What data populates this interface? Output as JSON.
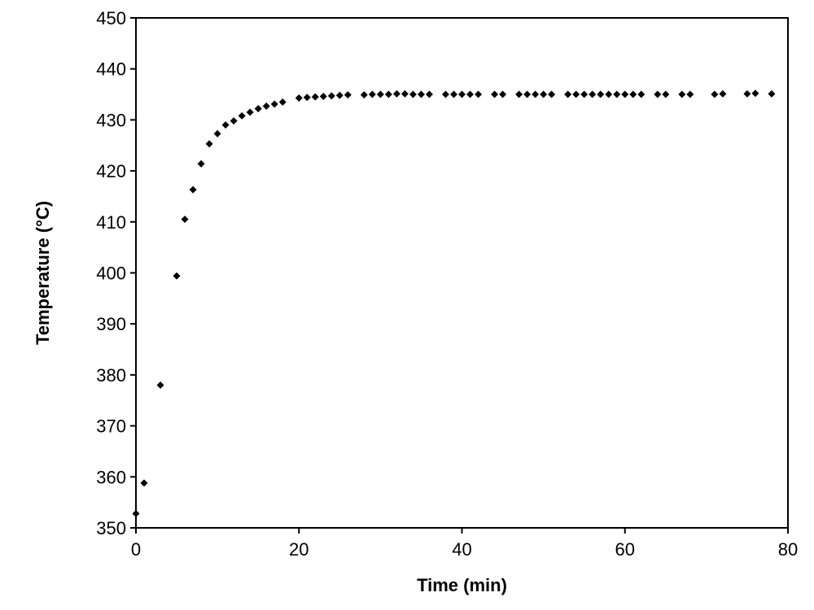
{
  "chart_data": {
    "type": "scatter",
    "title": "",
    "xlabel": "Time (min)",
    "ylabel": "Temperature (°C)",
    "xlim": [
      0,
      80
    ],
    "ylim": [
      350,
      450
    ],
    "xticks": [
      0,
      20,
      40,
      60,
      80
    ],
    "yticks": [
      350,
      360,
      370,
      380,
      390,
      400,
      410,
      420,
      430,
      440,
      450
    ],
    "grid": false,
    "legend": "none",
    "marker": "diamond",
    "marker_color": "#000000",
    "series": [
      {
        "x": [
          0,
          1,
          3,
          5,
          6,
          7,
          8,
          9,
          10,
          11,
          12,
          13,
          14,
          15,
          16,
          17,
          18,
          20,
          21,
          22,
          23,
          24,
          25,
          26,
          28,
          29,
          30,
          31,
          32,
          33,
          34,
          35,
          36,
          38,
          39,
          40,
          41,
          42,
          44,
          45,
          47,
          48,
          49,
          50,
          51,
          53,
          54,
          55,
          56,
          57,
          58,
          59,
          60,
          61,
          62,
          64,
          65,
          67,
          68,
          71,
          72,
          75,
          76,
          78
        ],
        "y": [
          352.8,
          358.8,
          378.0,
          399.4,
          410.5,
          416.3,
          421.4,
          425.3,
          427.3,
          429.0,
          429.8,
          430.8,
          431.5,
          432.2,
          432.7,
          433.1,
          433.5,
          434.3,
          434.4,
          434.5,
          434.6,
          434.7,
          434.8,
          434.9,
          434.9,
          435.0,
          435.0,
          435.0,
          435.1,
          435.1,
          435.0,
          435.0,
          435.0,
          435.0,
          435.0,
          435.0,
          435.0,
          435.0,
          435.0,
          435.0,
          435.0,
          435.0,
          435.0,
          435.0,
          435.0,
          435.0,
          435.0,
          435.0,
          435.0,
          435.0,
          435.0,
          435.0,
          435.0,
          435.0,
          435.0,
          435.0,
          435.0,
          435.0,
          435.0,
          435.0,
          435.1,
          435.1,
          435.2,
          435.1
        ]
      }
    ]
  }
}
